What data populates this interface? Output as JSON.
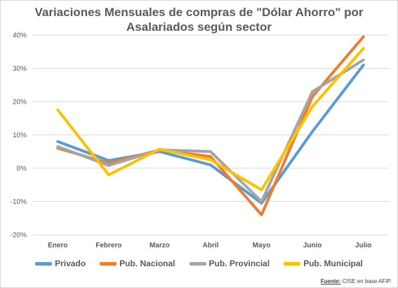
{
  "title_line1": "Variaciones Mensuales de compras de \"Dólar Ahorro\" por",
  "title_line2": "Asalariados según sector",
  "source_label": "Fuente:",
  "source_text": " CISE en base AFIP.",
  "chart_data": {
    "type": "line",
    "title": "Variaciones Mensuales de compras de \"Dólar Ahorro\" por Asalariados según sector",
    "categories": [
      "Enero",
      "Febrero",
      "Marzo",
      "Abril",
      "Mayo",
      "Junio",
      "Julio"
    ],
    "yticks": [
      "-20%",
      "-10%",
      "0%",
      "10%",
      "20%",
      "30%",
      "40%"
    ],
    "ylim": [
      -20,
      40
    ],
    "grid": true,
    "legend_position": "bottom",
    "series": [
      {
        "name": "Privado",
        "color": "#5b9bd5",
        "values": [
          8,
          2.3,
          5,
          1,
          -10.5,
          11,
          31
        ]
      },
      {
        "name": "Pub. Nacional",
        "color": "#ed7d31",
        "values": [
          6,
          1.5,
          5.5,
          3.5,
          -14,
          21.5,
          39.5
        ]
      },
      {
        "name": "Pub. Provincial",
        "color": "#a5a5a5",
        "values": [
          6.5,
          0.8,
          5.5,
          5,
          -10,
          23,
          32.5
        ]
      },
      {
        "name": "Pub. Municipal",
        "color": "#ffc000",
        "values": [
          17.5,
          -2,
          5.7,
          2.5,
          -6.5,
          18.5,
          36
        ]
      }
    ]
  }
}
